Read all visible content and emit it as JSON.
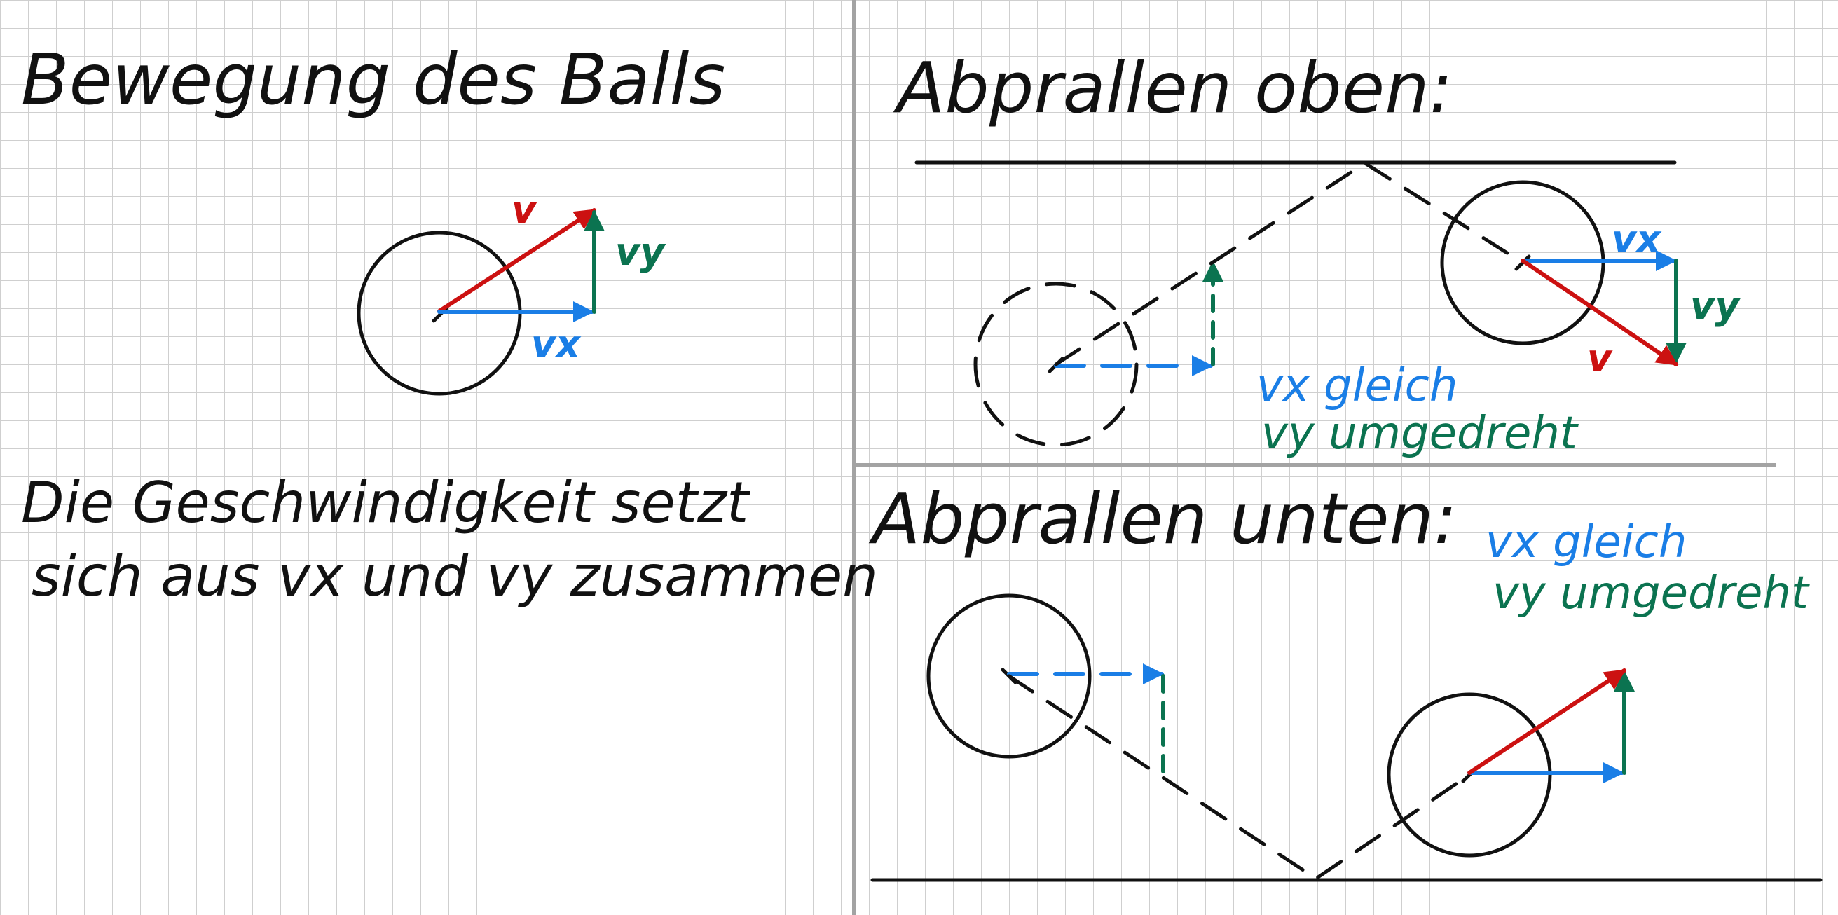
{
  "colors": {
    "grid": "#cfcfcf",
    "divider": "#a3a3a3",
    "ink": "#111111",
    "velocity": "#cc1111",
    "vx": "#1a7ee6",
    "vy": "#0b7350"
  },
  "panel_motion": {
    "title": "Bewegung des Balls",
    "label_v": "v",
    "label_vx": "vx",
    "label_vy": "vy",
    "description_line1": "Die Geschwindigkeit setzt",
    "description_line2": "sich aus vx und vy zusammen"
  },
  "panel_top": {
    "title": "Abprallen oben:",
    "label_v": "v",
    "label_vx": "vx",
    "label_vy": "vy",
    "note_vx": "vx gleich",
    "note_vy": "vy umgedreht"
  },
  "panel_bottom": {
    "title": "Abprallen unten:",
    "note_vx": "vx gleich",
    "note_vy": "vy umgedreht"
  }
}
